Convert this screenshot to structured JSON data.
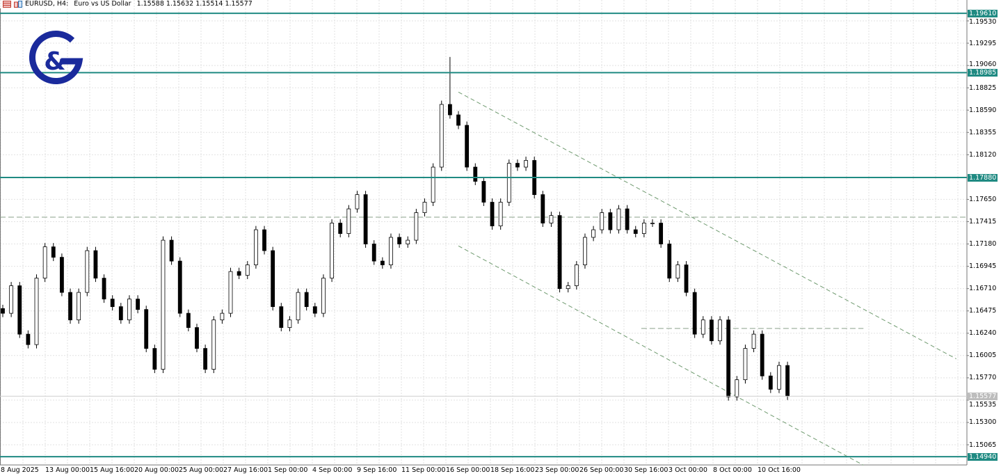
{
  "header": {
    "symbol": "EURUSD, H4:",
    "description": "Euro vs US Dollar",
    "ohlc": "1.15588 1.15632 1.15514 1.15577",
    "icons": [
      "chart-window-icon",
      "chart-type-icon"
    ]
  },
  "logo": {
    "text": "G&",
    "color": "#1a2a9c"
  },
  "chart_data": {
    "type": "candlestick",
    "timeframe": "H4",
    "ylim": [
      1.149,
      1.1975
    ],
    "y_ticks": [
      "1.19530",
      "1.19295",
      "1.19060",
      "1.18825",
      "1.18590",
      "1.18355",
      "1.18120",
      "1.17650",
      "1.17415",
      "1.17180",
      "1.16945",
      "1.16710",
      "1.16475",
      "1.16240",
      "1.16005",
      "1.15770",
      "1.15535",
      "1.15300",
      "1.15065"
    ],
    "x_ticks": [
      "8 Aug 2025",
      "13 Aug 00:00",
      "15 Aug 16:00",
      "20 Aug 00:00",
      "25 Aug 00:00",
      "27 Aug 16:00",
      "1 Sep 00:00",
      "4 Sep 00:00",
      "9 Sep 16:00",
      "11 Sep 00:00",
      "16 Sep 00:00",
      "18 Sep 16:00",
      "23 Sep 00:00",
      "26 Sep 00:00",
      "30 Sep 16:00",
      "3 Oct 00:00",
      "8 Oct 00:00",
      "10 Oct 16:00"
    ],
    "closes": [
      1.1645,
      1.1674,
      1.1623,
      1.1612,
      1.1682,
      1.1715,
      1.1704,
      1.1667,
      1.1638,
      1.1667,
      1.1711,
      1.1682,
      1.166,
      1.1652,
      1.1638,
      1.166,
      1.1649,
      1.1608,
      1.1586,
      1.1722,
      1.17,
      1.1645,
      1.163,
      1.1608,
      1.1586,
      1.1638,
      1.1645,
      1.1689,
      1.1685,
      1.1696,
      1.1733,
      1.1711,
      1.1652,
      1.163,
      1.1638,
      1.1667,
      1.1652,
      1.1645,
      1.1682,
      1.174,
      1.1729,
      1.1755,
      1.177,
      1.1718,
      1.17,
      1.1696,
      1.1725,
      1.1718,
      1.1722,
      1.1751,
      1.1762,
      1.1799,
      1.1865,
      1.1854,
      1.1843,
      1.1799,
      1.1784,
      1.1762,
      1.1737,
      1.1762,
      1.1803,
      1.1799,
      1.1806,
      1.177,
      1.174,
      1.1748,
      1.1671,
      1.1674,
      1.1696,
      1.1725,
      1.1733,
      1.1751,
      1.1733,
      1.1755,
      1.1733,
      1.1729,
      1.174,
      1.174,
      1.1718,
      1.1682,
      1.1696,
      1.1667,
      1.1623,
      1.1638,
      1.1616,
      1.1638,
      1.1557,
      1.1575,
      1.1608,
      1.1623,
      1.1579,
      1.1565,
      1.159,
      1.15577
    ],
    "notable_high": {
      "index": 53,
      "price": 1.1915
    },
    "levels": [
      {
        "label": "1.19610",
        "price": 1.1961
      },
      {
        "label": "1.18985",
        "price": 1.18985
      },
      {
        "label": "1.17880",
        "price": 1.1788
      },
      {
        "label": "1.14940",
        "price": 1.1494
      }
    ],
    "current_price": {
      "label": "1.15577",
      "price": 1.15577
    },
    "dashed_levels": [
      {
        "price": 1.17463,
        "from_index": 0,
        "to_index": 116
      },
      {
        "price": 1.1629,
        "from_index": 76,
        "to_index": 102
      }
    ],
    "trendlines": [
      {
        "from": {
          "index": 54,
          "price": 1.1878
        },
        "to": {
          "index": 113,
          "price": 1.1597
        }
      },
      {
        "from": {
          "index": 54,
          "price": 1.1716
        },
        "to": {
          "index": 102,
          "price": 1.1485
        }
      }
    ],
    "colors": {
      "level": "#1f8a82",
      "trendline": "#6f9a6f",
      "dashed": "#8aa08a",
      "bear": "#000000",
      "bull": "#ffffff"
    },
    "grid": true
  }
}
